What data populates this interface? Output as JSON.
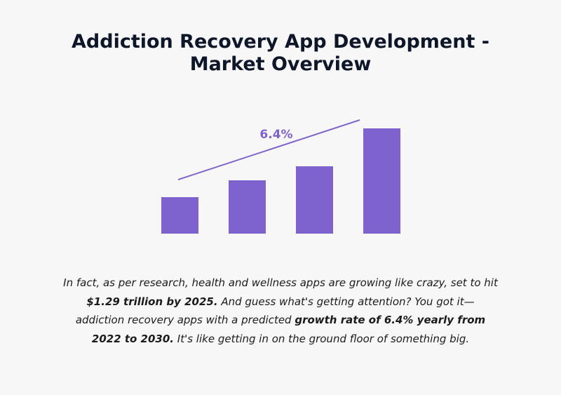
{
  "title": {
    "line1": "Addiction Recovery App Development -",
    "line2": "Market Overview"
  },
  "chart_data": {
    "type": "bar",
    "categories": [
      "",
      "",
      "",
      ""
    ],
    "values": [
      26,
      38,
      48,
      75
    ],
    "ylim": [
      0,
      100
    ],
    "bar_color": "#7e63cf",
    "axes_visible": false,
    "grid": false,
    "trend_annotation": "6.4%"
  },
  "description": {
    "p1": "In fact, as per research, health and wellness apps are growing like crazy, set to hit ",
    "b1": "$1.29 trillion by 2025.",
    "p2": " And guess what's getting attention? You got it—addiction recovery apps with a predicted ",
    "b2": "growth rate of 6.4% yearly from 2022 to 2030.",
    "p3": " It's like getting in on the ground floor of something big."
  }
}
